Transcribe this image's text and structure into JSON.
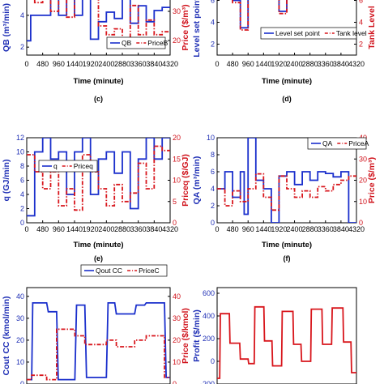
{
  "colors": {
    "left_axis": "#1f2fb5",
    "right_axis": "#d0121b",
    "left_series": "#1a2fcc",
    "right_series": "#d8161c"
  },
  "chart_data": [
    {
      "id": "b",
      "type": "line",
      "panel_label": "",
      "xlabel": "Time (minute)",
      "ylabel_left": "Q_B (m^3/min)",
      "ylabel_right": "Price ($/m^3)",
      "xticks": [
        0,
        480,
        960,
        1440,
        1920,
        2400,
        2880,
        3360,
        3840,
        4320
      ],
      "yticks_left": [
        2,
        4,
        6
      ],
      "yticks_right": [
        20,
        30,
        40
      ],
      "xlim": [
        0,
        4320
      ],
      "ylim_left": [
        1.5,
        7
      ],
      "ylim_right": [
        15,
        45
      ],
      "legend": {
        "placement": "right",
        "entries": [
          "Q_B",
          "Price_B"
        ]
      },
      "series": [
        {
          "name": "Q_B",
          "axis": "left",
          "style": "solid",
          "x": [
            0,
            120,
            120,
            720,
            720,
            960,
            960,
            1200,
            1200,
            1440,
            1440,
            1680,
            1680,
            1920,
            1920,
            2160,
            2160,
            2400,
            2400,
            2640,
            2640,
            2880,
            2880,
            3120,
            3120,
            3360,
            3360,
            3600,
            3600,
            3840,
            3840,
            4080,
            4080,
            4320
          ],
          "y": [
            2.4,
            2.4,
            4.0,
            4.0,
            6.5,
            6.5,
            4.0,
            4.0,
            7.0,
            7.0,
            4.0,
            4.0,
            6.5,
            6.5,
            2.5,
            2.5,
            3.6,
            3.6,
            4.2,
            4.2,
            3.8,
            3.8,
            5.2,
            5.2,
            3.5,
            3.5,
            4.6,
            4.6,
            3.6,
            3.6,
            4.3,
            4.3,
            4.5,
            4.5
          ]
        },
        {
          "name": "Price_B",
          "axis": "right",
          "style": "dashdot",
          "x": [
            0,
            240,
            240,
            480,
            480,
            720,
            720,
            960,
            960,
            1200,
            1200,
            1440,
            1440,
            1680,
            1680,
            1920,
            1920,
            2160,
            2160,
            2400,
            2400,
            2640,
            2640,
            2880,
            2880,
            3120,
            3120,
            3360,
            3360,
            3600,
            3600,
            3840,
            3840,
            4080,
            4080,
            4320
          ],
          "y": [
            40,
            40,
            33,
            33,
            36,
            36,
            30,
            30,
            42,
            42,
            28,
            28,
            40,
            40,
            36,
            36,
            38,
            38,
            25,
            25,
            22,
            22,
            24,
            24,
            18,
            18,
            32,
            32,
            22,
            22,
            27,
            27,
            22,
            22,
            23,
            23
          ]
        }
      ]
    },
    {
      "id": "c_top",
      "type": "line",
      "panel_label": "",
      "xlabel": "Time (minute)",
      "ylabel_left": "Level set point",
      "ylabel_right": "Tank Level",
      "xticks": [
        0,
        480,
        960,
        1440,
        1920,
        2400,
        2880,
        3360,
        3840,
        4320
      ],
      "yticks_left": [
        2,
        4,
        6,
        8
      ],
      "yticks_right": [
        2,
        4,
        6,
        8
      ],
      "xlim": [
        0,
        4320
      ],
      "ylim_left": [
        1,
        9
      ],
      "ylim_right": [
        1,
        9
      ],
      "legend": {
        "placement": "bottom-right",
        "entries": [
          "Level set point",
          "Tank level"
        ]
      },
      "series": [
        {
          "name": "Level set point",
          "axis": "left",
          "style": "solid",
          "x": [
            0,
            480,
            480,
            720,
            720,
            960,
            960,
            1440,
            1440,
            1920,
            1920,
            2160,
            2160,
            2400,
            2400,
            2880,
            2880,
            3360,
            3360,
            3840,
            3840,
            4320
          ],
          "y": [
            8,
            8,
            6,
            6,
            3.5,
            3.5,
            8,
            8,
            8,
            8,
            5,
            5,
            6.5,
            6.5,
            7.5,
            7.5,
            8,
            8,
            8,
            8,
            8,
            8
          ]
        },
        {
          "name": "Tank level",
          "axis": "right",
          "style": "dashdot",
          "x": [
            0,
            480,
            480,
            720,
            720,
            960,
            960,
            1440,
            1440,
            1920,
            1920,
            2160,
            2160,
            2400,
            2400,
            2880,
            2880,
            3360,
            3360,
            3840,
            3840,
            4320
          ],
          "y": [
            7.8,
            7.8,
            5.8,
            5.8,
            3.3,
            3.3,
            7.8,
            7.8,
            7.9,
            7.9,
            4.8,
            4.8,
            6.4,
            6.4,
            7.4,
            7.4,
            7.9,
            7.9,
            7.9,
            7.9,
            7.9,
            7.9
          ]
        }
      ]
    },
    {
      "id": "c",
      "type": "line",
      "panel_label": "(c)",
      "xlabel": "Time (minute)",
      "ylabel_left": "q (GJ/min)",
      "ylabel_right": "Price_q ($/GJ)",
      "xticks": [
        0,
        480,
        960,
        1440,
        1920,
        2400,
        2880,
        3360,
        3840,
        4320
      ],
      "yticks_left": [
        0,
        2,
        4,
        6,
        8,
        10,
        12
      ],
      "yticks_right": [
        0,
        5,
        10,
        15,
        20
      ],
      "xlim": [
        0,
        4320
      ],
      "ylim_left": [
        0,
        12
      ],
      "ylim_right": [
        0,
        20
      ],
      "legend": {
        "placement": "top-left",
        "entries": [
          "q",
          "Price_q"
        ]
      },
      "series": [
        {
          "name": "q",
          "axis": "left",
          "style": "solid",
          "x": [
            0,
            240,
            240,
            480,
            480,
            720,
            720,
            960,
            960,
            1200,
            1200,
            1440,
            1440,
            1680,
            1680,
            1920,
            1920,
            2160,
            2160,
            2400,
            2400,
            2640,
            2640,
            2880,
            2880,
            3120,
            3120,
            3360,
            3360,
            3600,
            3600,
            3840,
            3840,
            4080,
            4080,
            4320
          ],
          "y": [
            1,
            1,
            10,
            10,
            12,
            12,
            9,
            9,
            10,
            10,
            4,
            4,
            10,
            10,
            12,
            12,
            4,
            4,
            9,
            9,
            10,
            10,
            7,
            7,
            10,
            10,
            2,
            2,
            9,
            9,
            12,
            12,
            9,
            9,
            12,
            12
          ]
        },
        {
          "name": "Price_q",
          "axis": "right",
          "style": "dashdot",
          "x": [
            0,
            240,
            240,
            480,
            480,
            720,
            720,
            960,
            960,
            1200,
            1200,
            1440,
            1440,
            1680,
            1680,
            1920,
            1920,
            2160,
            2160,
            2400,
            2400,
            2640,
            2640,
            2880,
            2880,
            3120,
            3120,
            3360,
            3360,
            3600,
            3600,
            3840,
            3840,
            4080,
            4080,
            4320
          ],
          "y": [
            16,
            16,
            12,
            12,
            8,
            8,
            12,
            12,
            4,
            4,
            8,
            8,
            3,
            3,
            16,
            16,
            12,
            12,
            8,
            8,
            4,
            4,
            9,
            9,
            5,
            5,
            7,
            7,
            14,
            14,
            8,
            8,
            18,
            18,
            17,
            17
          ]
        }
      ]
    },
    {
      "id": "d",
      "type": "line",
      "panel_label": "(d)",
      "xlabel": "Time (minute)",
      "ylabel_left": "Q_A (m^3/min)",
      "ylabel_right": "Price ($/m^3)",
      "xticks": [
        0,
        480,
        960,
        1440,
        1920,
        2400,
        2880,
        3360,
        3840,
        4320
      ],
      "yticks_left": [
        0,
        2,
        4,
        6,
        8,
        10
      ],
      "yticks_right": [
        0,
        10,
        20,
        30,
        40
      ],
      "xlim": [
        0,
        4320
      ],
      "ylim_left": [
        0,
        10
      ],
      "ylim_right": [
        0,
        40
      ],
      "legend": {
        "placement": "top-right",
        "entries": [
          "Q_A",
          "Price_A"
        ]
      },
      "series": [
        {
          "name": "Q_A",
          "axis": "left",
          "style": "solid",
          "x": [
            0,
            240,
            240,
            480,
            480,
            720,
            720,
            840,
            840,
            960,
            960,
            1200,
            1200,
            1440,
            1440,
            1680,
            1680,
            1920,
            1920,
            2160,
            2160,
            2400,
            2400,
            2640,
            2640,
            2880,
            2880,
            3120,
            3120,
            3360,
            3360,
            3600,
            3600,
            3840,
            3840,
            4080,
            4080,
            4320
          ],
          "y": [
            4,
            4,
            6,
            6,
            3,
            3,
            6,
            6,
            1,
            1,
            10,
            10,
            5,
            5,
            4,
            4,
            0,
            0,
            5.5,
            5.5,
            6,
            6,
            4.5,
            4.5,
            6,
            6,
            5,
            5,
            6,
            6,
            5.8,
            5.8,
            5.4,
            5.4,
            6,
            6,
            0,
            0
          ]
        },
        {
          "name": "Price_A",
          "axis": "right",
          "style": "dashdot",
          "x": [
            0,
            240,
            240,
            480,
            480,
            720,
            720,
            960,
            960,
            1200,
            1200,
            1440,
            1440,
            1680,
            1680,
            1920,
            1920,
            2160,
            2160,
            2400,
            2400,
            2640,
            2640,
            2880,
            2880,
            3120,
            3120,
            3360,
            3360,
            3600,
            3600,
            3840,
            3840,
            4080,
            4080,
            4320
          ],
          "y": [
            16,
            16,
            8,
            8,
            15,
            15,
            10,
            10,
            16,
            16,
            23,
            23,
            12,
            12,
            6,
            6,
            22,
            22,
            16,
            16,
            12,
            12,
            15,
            15,
            12,
            12,
            17,
            17,
            15,
            15,
            18,
            18,
            20,
            20,
            22,
            22
          ]
        }
      ]
    },
    {
      "id": "e",
      "type": "line",
      "panel_label": "(e)",
      "xlabel": "",
      "ylabel_left": "C_out C_C (kmol/min)",
      "ylabel_right": "Price ($/kmol)",
      "xticks": [],
      "yticks_left": [
        0,
        10,
        20,
        30,
        40
      ],
      "yticks_right": [
        0,
        10,
        20,
        30,
        40
      ],
      "xlim": [
        0,
        4320
      ],
      "ylim_left": [
        0,
        44
      ],
      "ylim_right": [
        0,
        44
      ],
      "legend": {
        "placement": "top",
        "entries": [
          "Q_out C_C",
          "Price_C"
        ]
      },
      "series": [
        {
          "name": "Q_out C_C",
          "axis": "left",
          "style": "solid",
          "x": [
            0,
            150,
            180,
            600,
            650,
            900,
            950,
            1450,
            1500,
            1750,
            1800,
            2400,
            2450,
            2650,
            2700,
            3250,
            3300,
            3550,
            3600,
            4150,
            4200,
            4320
          ],
          "y": [
            2,
            2,
            37,
            37,
            33,
            33,
            2,
            2,
            36,
            36,
            3,
            3,
            37,
            37,
            32,
            32,
            36,
            36,
            37,
            37,
            3,
            3
          ]
        },
        {
          "name": "Price_C",
          "axis": "right",
          "style": "dashdot",
          "x": [
            0,
            150,
            150,
            600,
            600,
            900,
            900,
            1450,
            1450,
            1750,
            1750,
            2400,
            2400,
            2700,
            2700,
            3250,
            3250,
            3600,
            3600,
            4150,
            4150,
            4320
          ],
          "y": [
            2,
            2,
            4,
            4,
            2,
            2,
            25,
            25,
            22,
            22,
            18,
            18,
            20,
            20,
            17,
            17,
            20,
            20,
            22,
            22,
            3,
            3
          ]
        }
      ]
    },
    {
      "id": "f",
      "type": "line",
      "panel_label": "(f)",
      "xlabel": "",
      "ylabel_left": "Profit ($/min)",
      "ylabel_right": "",
      "xticks": [],
      "yticks_left": [
        -200,
        0,
        200,
        400,
        600
      ],
      "yticks_right": [],
      "xlim": [
        0,
        4320
      ],
      "ylim_left": [
        -200,
        650
      ],
      "ylim_right": [],
      "legend": {
        "placement": "",
        "entries": []
      },
      "series": [
        {
          "name": "Profit",
          "axis": "left",
          "style": "solid",
          "x": [
            0,
            80,
            100,
            380,
            400,
            700,
            720,
            960,
            980,
            1150,
            1170,
            1450,
            1470,
            1700,
            1720,
            2000,
            2020,
            2350,
            2370,
            2600,
            2620,
            2900,
            2920,
            3250,
            3270,
            3550,
            3570,
            3900,
            3920,
            4150,
            4170,
            4320
          ],
          "y": [
            -150,
            -150,
            420,
            420,
            160,
            160,
            20,
            20,
            -20,
            -20,
            480,
            480,
            180,
            180,
            -40,
            -40,
            440,
            440,
            150,
            150,
            0,
            0,
            460,
            460,
            150,
            150,
            470,
            470,
            170,
            170,
            -100,
            -100
          ]
        }
      ]
    }
  ]
}
